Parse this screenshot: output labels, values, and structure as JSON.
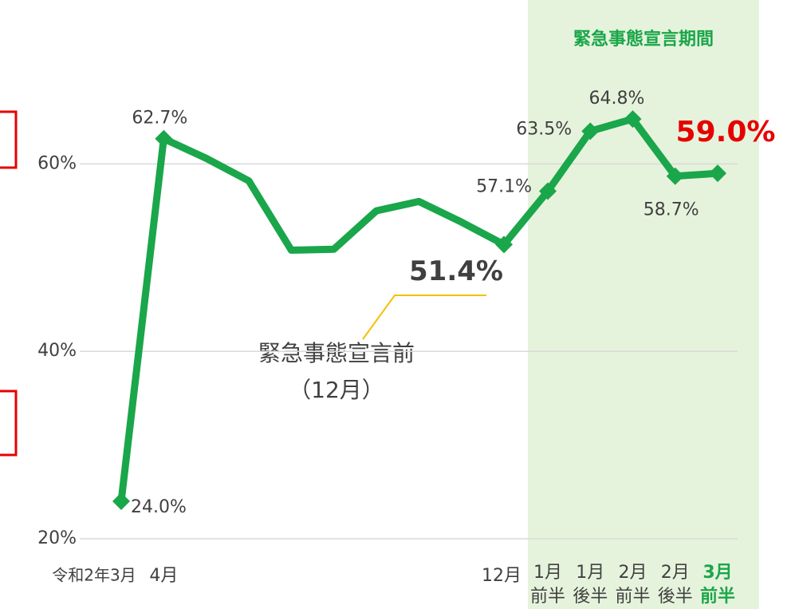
{
  "chart_data": {
    "type": "line",
    "categories": [
      "令和2年3月",
      "4月",
      null,
      null,
      null,
      null,
      null,
      null,
      null,
      "12月",
      [
        "1月",
        "前半"
      ],
      [
        "1月",
        "後半"
      ],
      [
        "2月",
        "前半"
      ],
      [
        "2月",
        "後半"
      ],
      [
        "3月",
        "前半"
      ]
    ],
    "series": [
      {
        "name": null,
        "color": "#1aa64a",
        "values": [
          24.0,
          62.7,
          60.6,
          58.2,
          50.8,
          50.9,
          55.0,
          56.0,
          53.8,
          51.4,
          57.1,
          63.5,
          64.8,
          58.7,
          59.0
        ],
        "value_labels": [
          "24.0%",
          "62.7%",
          null,
          null,
          null,
          null,
          null,
          null,
          null,
          "51.4%",
          "57.1%",
          "63.5%",
          "64.8%",
          "58.7%",
          "59.0%"
        ]
      }
    ],
    "ylim": [
      20,
      77.5
    ],
    "yticks": [
      {
        "value": 20,
        "label": "20%"
      },
      {
        "value": 40,
        "label": "40%"
      },
      {
        "value": 60,
        "label": "60%"
      }
    ],
    "grid": true,
    "annotations": {
      "period": "緊急事態宣言期間",
      "before": [
        "緊急事態宣言前",
        "（12月）"
      ]
    }
  }
}
